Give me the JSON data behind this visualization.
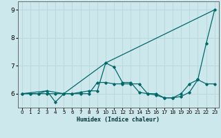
{
  "xlabel": "Humidex (Indice chaleur)",
  "background_color": "#cde8ec",
  "grid_color": "#b8d8dc",
  "line_color": "#006868",
  "xlim": [
    -0.5,
    23.5
  ],
  "ylim": [
    5.5,
    9.3
  ],
  "xticks": [
    0,
    1,
    2,
    3,
    4,
    5,
    6,
    7,
    8,
    9,
    10,
    11,
    12,
    13,
    14,
    15,
    16,
    17,
    18,
    19,
    20,
    21,
    22,
    23
  ],
  "yticks": [
    6,
    7,
    8,
    9
  ],
  "series1_x": [
    0,
    1,
    2,
    3,
    4,
    5,
    6,
    7,
    8,
    9,
    10,
    11,
    12,
    13,
    14,
    15,
    16,
    17,
    18,
    19,
    20,
    21,
    22,
    23
  ],
  "series1_y": [
    6.0,
    6.0,
    6.0,
    6.1,
    5.7,
    6.0,
    6.0,
    6.05,
    6.1,
    6.1,
    7.1,
    6.95,
    6.4,
    6.4,
    6.05,
    6.0,
    5.95,
    5.85,
    5.85,
    5.9,
    6.05,
    6.5,
    7.8,
    9.0
  ],
  "series2_x": [
    0,
    3,
    5,
    10,
    23
  ],
  "series2_y": [
    6.0,
    6.1,
    6.0,
    7.1,
    9.0
  ],
  "series3_x": [
    0,
    1,
    2,
    3,
    4,
    5,
    6,
    7,
    8,
    9,
    10,
    11,
    12,
    13,
    14,
    15,
    16,
    17,
    18,
    19,
    20,
    21,
    22,
    23
  ],
  "series3_y": [
    6.0,
    6.0,
    6.0,
    6.0,
    6.0,
    6.0,
    6.0,
    6.0,
    6.0,
    6.4,
    6.4,
    6.35,
    6.35,
    6.35,
    6.35,
    6.0,
    6.0,
    5.85,
    5.85,
    6.0,
    6.35,
    6.5,
    6.35,
    6.35
  ]
}
